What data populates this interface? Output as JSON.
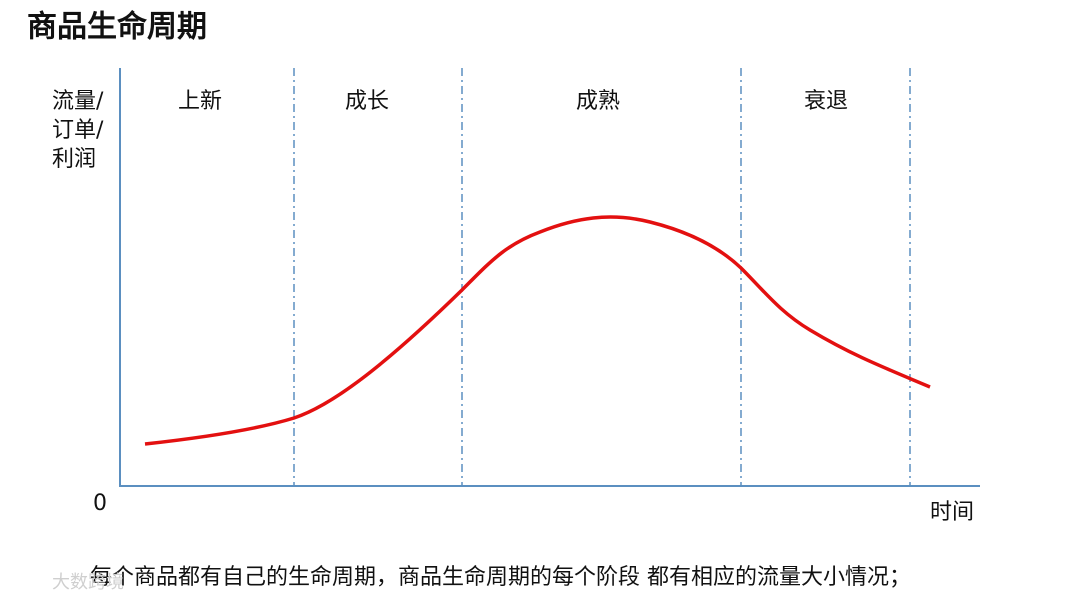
{
  "title": "商品生命周期",
  "y_axis_label": [
    "流量/",
    "订单/",
    "利润"
  ],
  "origin": "0",
  "x_axis_label": "时间",
  "phases": [
    "上新",
    "成长",
    "成熟",
    "衰退"
  ],
  "caption": "每个商品都有自己的生命周期，商品生命周期的每个阶段 都有相应的流量大小情况；",
  "watermark": "大数跨境"
}
